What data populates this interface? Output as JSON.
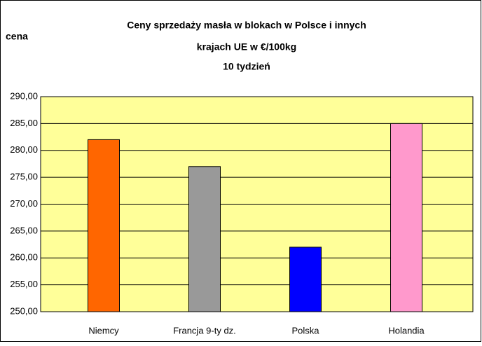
{
  "chart_data": {
    "type": "bar",
    "title": [
      "Ceny sprzedaży masła w blokach w Polsce i  innych",
      "krajach UE w €/100kg",
      "10 tydzień"
    ],
    "y_label": "cena",
    "categories": [
      "Niemcy",
      "Francja 9-ty dz.",
      "Polska",
      "Holandia"
    ],
    "values": [
      282,
      277,
      262,
      285
    ],
    "colors": [
      "#ff6600",
      "#999999",
      "#0000ff",
      "#ff99cc"
    ],
    "ylim": [
      250,
      290
    ],
    "yticks": [
      {
        "value": 250,
        "label": "250,00"
      },
      {
        "value": 255,
        "label": "255,00"
      },
      {
        "value": 260,
        "label": "260,00"
      },
      {
        "value": 265,
        "label": "265,00"
      },
      {
        "value": 270,
        "label": "270,00"
      },
      {
        "value": 275,
        "label": "275,00"
      },
      {
        "value": 280,
        "label": "280,00"
      },
      {
        "value": 285,
        "label": "285,00"
      },
      {
        "value": 290,
        "label": "290,00"
      }
    ],
    "grid": true,
    "background": "#ffff99"
  }
}
